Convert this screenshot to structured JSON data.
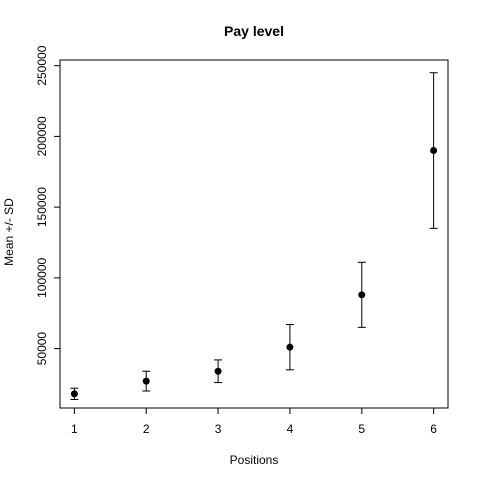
{
  "chart_data": {
    "type": "scatter",
    "title": "Pay level",
    "xlabel": "Positions",
    "ylabel": "Mean +/- SD",
    "x": [
      1,
      2,
      3,
      4,
      5,
      6
    ],
    "y": [
      18000,
      27000,
      34000,
      51000,
      88000,
      190000
    ],
    "error_low": [
      14000,
      20000,
      26000,
      35000,
      65000,
      135000
    ],
    "error_high": [
      22000,
      34000,
      42000,
      67000,
      111000,
      245000
    ],
    "xlim": [
      0.8,
      6.2
    ],
    "ylim": [
      8000,
      254000
    ],
    "xticks": [
      "1",
      "2",
      "3",
      "4",
      "5",
      "6"
    ],
    "yticks": [
      "50000",
      "100000",
      "150000",
      "200000",
      "250000"
    ],
    "grid": false,
    "legend": "none",
    "point_color": "#000000",
    "line_color": "#000000"
  }
}
